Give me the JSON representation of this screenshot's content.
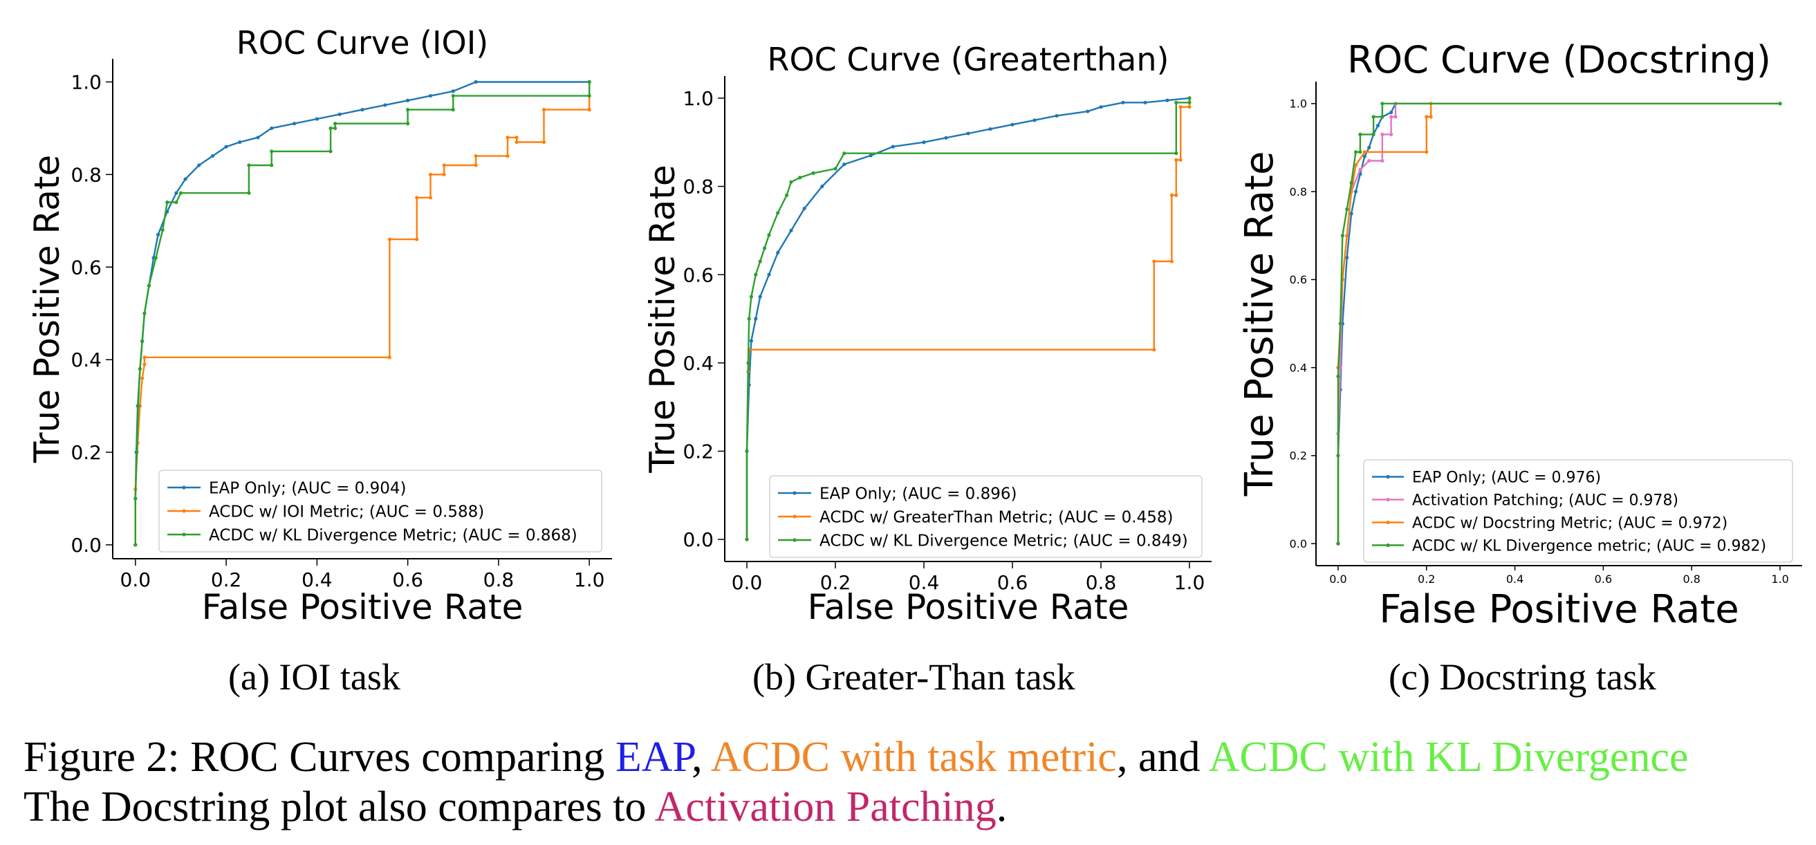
{
  "chart_data": [
    {
      "type": "line",
      "title": "ROC Curve (IOI)",
      "xlabel": "False Positive Rate",
      "ylabel": "True Positive Rate",
      "xlim": [
        -0.05,
        1.05
      ],
      "ylim": [
        -0.03,
        1.05
      ],
      "xticks": [
        "0.0",
        "0.2",
        "0.4",
        "0.6",
        "0.8",
        "1.0"
      ],
      "yticks": [
        "0.0",
        "0.2",
        "0.4",
        "0.6",
        "0.8",
        "1.0"
      ],
      "grid": false,
      "legend_position": "lower-right",
      "series": [
        {
          "name": "EAP Only; (AUC = 0.904)",
          "color": "#1f77b4",
          "points": [
            [
              0,
              0
            ],
            [
              0,
              0.1
            ],
            [
              0.002,
              0.2
            ],
            [
              0.005,
              0.3
            ],
            [
              0.01,
              0.38
            ],
            [
              0.015,
              0.44
            ],
            [
              0.02,
              0.5
            ],
            [
              0.03,
              0.56
            ],
            [
              0.04,
              0.62
            ],
            [
              0.05,
              0.67
            ],
            [
              0.07,
              0.72
            ],
            [
              0.09,
              0.76
            ],
            [
              0.11,
              0.79
            ],
            [
              0.14,
              0.82
            ],
            [
              0.17,
              0.84
            ],
            [
              0.2,
              0.86
            ],
            [
              0.23,
              0.87
            ],
            [
              0.27,
              0.88
            ],
            [
              0.3,
              0.9
            ],
            [
              0.35,
              0.91
            ],
            [
              0.4,
              0.92
            ],
            [
              0.45,
              0.93
            ],
            [
              0.5,
              0.94
            ],
            [
              0.55,
              0.95
            ],
            [
              0.6,
              0.96
            ],
            [
              0.65,
              0.97
            ],
            [
              0.7,
              0.98
            ],
            [
              0.75,
              1.0
            ],
            [
              1.0,
              1.0
            ]
          ]
        },
        {
          "name": "ACDC w/ IOI Metric; (AUC = 0.588)",
          "color": "#ff7f0e",
          "points": [
            [
              0,
              0
            ],
            [
              0,
              0.12
            ],
            [
              0.005,
              0.22
            ],
            [
              0.01,
              0.3
            ],
            [
              0.015,
              0.36
            ],
            [
              0.02,
              0.39
            ],
            [
              0.02,
              0.405
            ],
            [
              0.56,
              0.405
            ],
            [
              0.56,
              0.66
            ],
            [
              0.62,
              0.66
            ],
            [
              0.62,
              0.75
            ],
            [
              0.65,
              0.75
            ],
            [
              0.65,
              0.8
            ],
            [
              0.68,
              0.8
            ],
            [
              0.68,
              0.82
            ],
            [
              0.75,
              0.82
            ],
            [
              0.75,
              0.84
            ],
            [
              0.82,
              0.84
            ],
            [
              0.82,
              0.88
            ],
            [
              0.84,
              0.88
            ],
            [
              0.84,
              0.87
            ],
            [
              0.9,
              0.87
            ],
            [
              0.9,
              0.94
            ],
            [
              1.0,
              0.94
            ],
            [
              1.0,
              1.0
            ]
          ]
        },
        {
          "name": "ACDC w/ KL Divergence Metric; (AUC = 0.868)",
          "color": "#2ca02c",
          "points": [
            [
              0,
              0
            ],
            [
              0,
              0.1
            ],
            [
              0.003,
              0.2
            ],
            [
              0.006,
              0.3
            ],
            [
              0.01,
              0.38
            ],
            [
              0.015,
              0.44
            ],
            [
              0.02,
              0.5
            ],
            [
              0.03,
              0.56
            ],
            [
              0.045,
              0.62
            ],
            [
              0.06,
              0.68
            ],
            [
              0.07,
              0.74
            ],
            [
              0.09,
              0.74
            ],
            [
              0.1,
              0.76
            ],
            [
              0.25,
              0.76
            ],
            [
              0.25,
              0.82
            ],
            [
              0.3,
              0.82
            ],
            [
              0.3,
              0.85
            ],
            [
              0.43,
              0.85
            ],
            [
              0.43,
              0.9
            ],
            [
              0.44,
              0.9
            ],
            [
              0.44,
              0.91
            ],
            [
              0.6,
              0.91
            ],
            [
              0.6,
              0.94
            ],
            [
              0.7,
              0.94
            ],
            [
              0.7,
              0.97
            ],
            [
              1.0,
              0.97
            ],
            [
              1.0,
              1.0
            ]
          ]
        }
      ]
    },
    {
      "type": "line",
      "title": "ROC Curve (Greaterthan)",
      "xlabel": "False Positive Rate",
      "ylabel": "True Positive Rate",
      "xlim": [
        -0.05,
        1.05
      ],
      "ylim": [
        -0.05,
        1.05
      ],
      "xticks": [
        "0.0",
        "0.2",
        "0.4",
        "0.6",
        "0.8",
        "1.0"
      ],
      "yticks": [
        "0.0",
        "0.2",
        "0.4",
        "0.6",
        "0.8",
        "1.0"
      ],
      "grid": false,
      "legend_position": "lower-right",
      "series": [
        {
          "name": "EAP Only; (AUC = 0.896)",
          "color": "#1f77b4",
          "points": [
            [
              0,
              0
            ],
            [
              0,
              0.2
            ],
            [
              0.005,
              0.35
            ],
            [
              0.01,
              0.45
            ],
            [
              0.02,
              0.5
            ],
            [
              0.03,
              0.55
            ],
            [
              0.05,
              0.6
            ],
            [
              0.07,
              0.65
            ],
            [
              0.1,
              0.7
            ],
            [
              0.13,
              0.75
            ],
            [
              0.17,
              0.8
            ],
            [
              0.22,
              0.85
            ],
            [
              0.28,
              0.87
            ],
            [
              0.33,
              0.89
            ],
            [
              0.4,
              0.9
            ],
            [
              0.45,
              0.91
            ],
            [
              0.5,
              0.92
            ],
            [
              0.55,
              0.93
            ],
            [
              0.6,
              0.94
            ],
            [
              0.65,
              0.95
            ],
            [
              0.7,
              0.96
            ],
            [
              0.77,
              0.97
            ],
            [
              0.8,
              0.98
            ],
            [
              0.85,
              0.99
            ],
            [
              0.9,
              0.99
            ],
            [
              0.95,
              0.995
            ],
            [
              1.0,
              1.0
            ]
          ]
        },
        {
          "name": "ACDC w/ GreaterThan Metric; (AUC = 0.458)",
          "color": "#ff7f0e",
          "points": [
            [
              0,
              0
            ],
            [
              0,
              0.2
            ],
            [
              0.003,
              0.38
            ],
            [
              0.005,
              0.43
            ],
            [
              0.92,
              0.43
            ],
            [
              0.92,
              0.63
            ],
            [
              0.96,
              0.63
            ],
            [
              0.96,
              0.78
            ],
            [
              0.97,
              0.78
            ],
            [
              0.97,
              0.86
            ],
            [
              0.98,
              0.86
            ],
            [
              0.98,
              0.98
            ],
            [
              1.0,
              0.98
            ],
            [
              1.0,
              1.0
            ]
          ]
        },
        {
          "name": "ACDC w/ KL Divergence Metric; (AUC = 0.849)",
          "color": "#2ca02c",
          "points": [
            [
              0,
              0
            ],
            [
              0,
              0.2
            ],
            [
              0.003,
              0.4
            ],
            [
              0.005,
              0.5
            ],
            [
              0.01,
              0.55
            ],
            [
              0.02,
              0.6
            ],
            [
              0.03,
              0.63
            ],
            [
              0.04,
              0.66
            ],
            [
              0.05,
              0.69
            ],
            [
              0.07,
              0.74
            ],
            [
              0.09,
              0.78
            ],
            [
              0.1,
              0.81
            ],
            [
              0.12,
              0.82
            ],
            [
              0.15,
              0.83
            ],
            [
              0.2,
              0.84
            ],
            [
              0.22,
              0.875
            ],
            [
              0.97,
              0.875
            ],
            [
              0.97,
              0.99
            ],
            [
              1.0,
              0.99
            ],
            [
              1.0,
              1.0
            ]
          ]
        }
      ]
    },
    {
      "type": "line",
      "title": "ROC Curve (Docstring)",
      "xlabel": "False Positive Rate",
      "ylabel": "True Positive Rate",
      "xlim": [
        -0.05,
        1.05
      ],
      "ylim": [
        -0.05,
        1.05
      ],
      "xticks": [
        "0.0",
        "0.2",
        "0.4",
        "0.6",
        "0.8",
        "1.0"
      ],
      "yticks": [
        "0.0",
        "0.2",
        "0.4",
        "0.6",
        "0.8",
        "1.0"
      ],
      "grid": false,
      "legend_position": "lower-right",
      "series": [
        {
          "name": "EAP Only; (AUC = 0.976)",
          "color": "#1f77b4",
          "points": [
            [
              0,
              0
            ],
            [
              0,
              0.2
            ],
            [
              0.005,
              0.35
            ],
            [
              0.01,
              0.5
            ],
            [
              0.02,
              0.65
            ],
            [
              0.03,
              0.75
            ],
            [
              0.04,
              0.8
            ],
            [
              0.05,
              0.84
            ],
            [
              0.06,
              0.88
            ],
            [
              0.07,
              0.9
            ],
            [
              0.08,
              0.93
            ],
            [
              0.09,
              0.95
            ],
            [
              0.1,
              0.97
            ],
            [
              0.12,
              0.98
            ],
            [
              0.13,
              1.0
            ],
            [
              1.0,
              1.0
            ]
          ]
        },
        {
          "name": "Activation Patching; (AUC = 0.978)",
          "color": "#e377c2",
          "points": [
            [
              0,
              0
            ],
            [
              0,
              0.25
            ],
            [
              0.005,
              0.4
            ],
            [
              0.01,
              0.6
            ],
            [
              0.02,
              0.7
            ],
            [
              0.03,
              0.8
            ],
            [
              0.05,
              0.85
            ],
            [
              0.07,
              0.87
            ],
            [
              0.1,
              0.87
            ],
            [
              0.1,
              0.93
            ],
            [
              0.12,
              0.93
            ],
            [
              0.12,
              0.97
            ],
            [
              0.13,
              0.97
            ],
            [
              0.13,
              1.0
            ],
            [
              1.0,
              1.0
            ]
          ]
        },
        {
          "name": "ACDC w/ Docstring Metric; (AUC = 0.972)",
          "color": "#ff7f0e",
          "points": [
            [
              0,
              0
            ],
            [
              0,
              0.4
            ],
            [
              0.01,
              0.6
            ],
            [
              0.02,
              0.7
            ],
            [
              0.03,
              0.8
            ],
            [
              0.04,
              0.86
            ],
            [
              0.06,
              0.89
            ],
            [
              0.2,
              0.89
            ],
            [
              0.2,
              0.97
            ],
            [
              0.21,
              0.97
            ],
            [
              0.21,
              1.0
            ],
            [
              1.0,
              1.0
            ]
          ]
        },
        {
          "name": "ACDC w/ KL Divergence metric; (AUC = 0.982)",
          "color": "#2ca02c",
          "points": [
            [
              0,
              0
            ],
            [
              0,
              0.38
            ],
            [
              0.005,
              0.5
            ],
            [
              0.01,
              0.7
            ],
            [
              0.02,
              0.76
            ],
            [
              0.03,
              0.82
            ],
            [
              0.04,
              0.89
            ],
            [
              0.05,
              0.89
            ],
            [
              0.05,
              0.93
            ],
            [
              0.08,
              0.93
            ],
            [
              0.08,
              0.97
            ],
            [
              0.1,
              0.97
            ],
            [
              0.1,
              1.0
            ],
            [
              1.0,
              1.0
            ]
          ]
        }
      ]
    }
  ],
  "subcaptions": {
    "a": "(a) IOI task",
    "b": "(b) Greater-Than task",
    "c": "(c) Docstring task"
  },
  "caption": {
    "prefix": "Figure 2: ROC Curves comparing ",
    "eap": "EAP",
    "sep1": ", ",
    "acdc_task": "ACDC with task metric",
    "sep2": ", and ",
    "acdc_kl": "ACDC with KL Divergence",
    "line2_prefix": "The Docstring plot also compares to ",
    "activation_patching": "Activation Patching",
    "line2_suffix": "."
  },
  "colors": {
    "eap": "#1f1fe6",
    "acdc_task": "#f0862a",
    "acdc_kl": "#66ee44",
    "activation_patching": "#c2276b"
  }
}
